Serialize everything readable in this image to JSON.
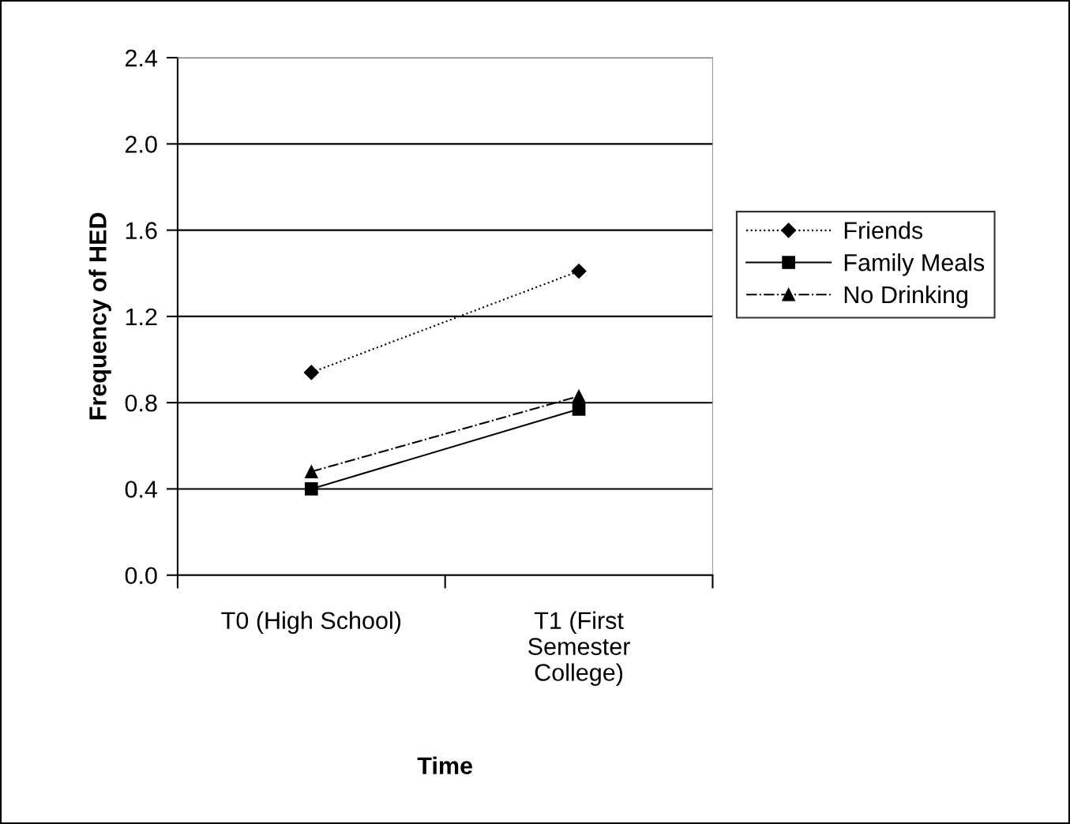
{
  "chart_data": {
    "type": "line",
    "xlabel": "Time",
    "ylabel": "Frequency of HED",
    "categories": [
      "T0 (High School)",
      "T1 (First\nSemester\nCollege)"
    ],
    "series": [
      {
        "name": "Friends",
        "color": "#000000",
        "values": [
          0.94,
          1.41
        ],
        "marker": "diamond",
        "line_style": "dotted"
      },
      {
        "name": "Family Meals",
        "color": "#000000",
        "values": [
          0.4,
          0.77
        ],
        "marker": "square",
        "line_style": "solid"
      },
      {
        "name": "No Drinking",
        "color": "#000000",
        "values": [
          0.48,
          0.83
        ],
        "marker": "triangle",
        "line_style": "dashdot"
      }
    ],
    "ylim": [
      0,
      2.4
    ],
    "yticks": [
      {
        "value": 0,
        "label": "0.0"
      },
      {
        "value": 0.4,
        "label": "0.4"
      },
      {
        "value": 0.8,
        "label": "0.8"
      },
      {
        "value": 1.2,
        "label": "1.2"
      },
      {
        "value": 1.6,
        "label": "1.6"
      },
      {
        "value": 2.0,
        "label": "2.0"
      },
      {
        "value": 2.4,
        "label": "2.4"
      }
    ],
    "grid": "y",
    "legend": "right"
  }
}
